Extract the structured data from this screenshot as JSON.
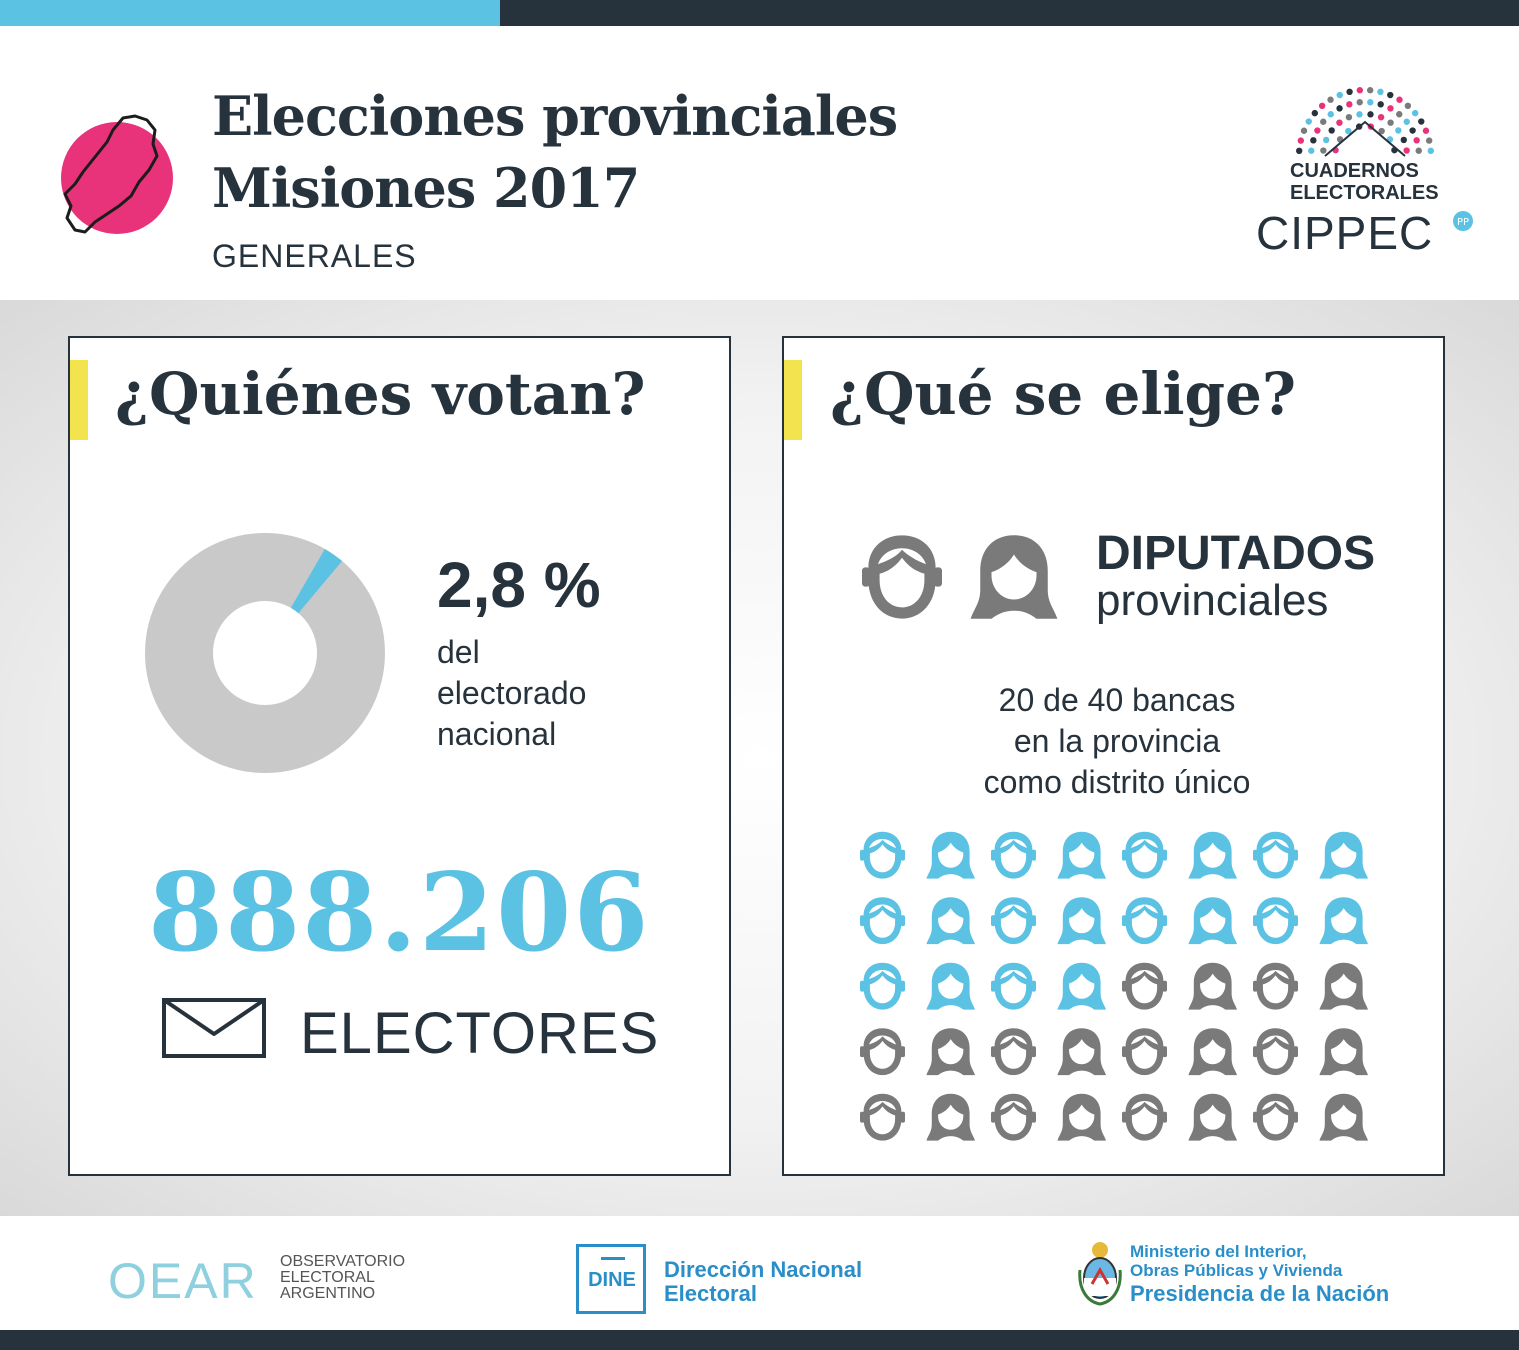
{
  "header": {
    "title_line1": "Elecciones provinciales",
    "title_line2": "Misiones 2017",
    "subtitle": "GENERALES",
    "logo_line1": "CUADERNOS",
    "logo_line2": "ELECTORALES",
    "logo_brand": "CIPPEC"
  },
  "left_card": {
    "title": "¿Quiénes votan?",
    "percent_label": "2,8 %",
    "percent_value": 2.8,
    "caption_line1": "del",
    "caption_line2": "electorado",
    "caption_line3": "nacional",
    "electors_number": "888.206",
    "electors_label": "ELECTORES"
  },
  "right_card": {
    "title": "¿Qué se elige?",
    "office_title": "DIPUTADOS",
    "office_sub": "provinciales",
    "desc_line1": "20 de 40 bancas",
    "desc_line2": "en la provincia",
    "desc_line3": "como distrito único",
    "seats_elected": 20,
    "seats_total": 40
  },
  "footer": {
    "oear_mark": "OEAR",
    "oear_line1": "OBSERVATORIO",
    "oear_line2": "ELECTORAL",
    "oear_line3": "ARGENTINO",
    "dine_mark": "DINE",
    "dine_line1": "Dirección Nacional",
    "dine_line2": "Electoral",
    "min_line1": "Ministerio del Interior,",
    "min_line2": "Obras Públicas y Vivienda",
    "min_line3": "Presidencia de la Nación"
  },
  "colors": {
    "dark": "#26323c",
    "accent_blue": "#5bc2e4",
    "pink": "#e8337a",
    "yellow": "#f3e34f",
    "gray": "#7a7a7a",
    "donut_gray": "#c9c9c9"
  }
}
